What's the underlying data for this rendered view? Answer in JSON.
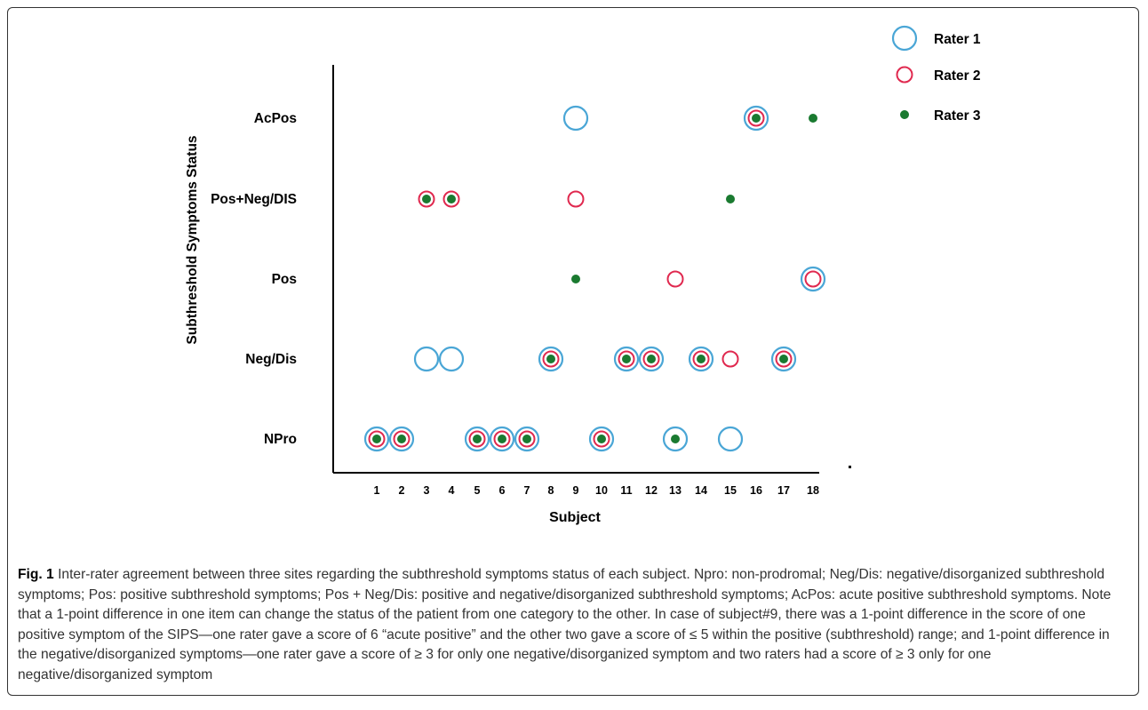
{
  "chart_data": {
    "type": "scatter",
    "xlabel": "Subject",
    "ylabel": "Subthreshold Symptoms Status",
    "x_ticks": [
      "1",
      "2",
      "3",
      "4",
      "5",
      "6",
      "7",
      "8",
      "9",
      "10",
      "11",
      "12",
      "13",
      "14",
      "15",
      "16",
      "17",
      "18"
    ],
    "y_categories": [
      "NPro",
      "Neg/Dis",
      "Pos",
      "Pos+Neg/DIS",
      "AcPos"
    ],
    "legend_position": "top-right",
    "grid": false,
    "series": [
      {
        "name": "Rater 1",
        "color": "#4aa6d6",
        "marker": "large-open-circle",
        "points": [
          {
            "x": 1,
            "y": "NPro"
          },
          {
            "x": 2,
            "y": "NPro"
          },
          {
            "x": 3,
            "y": "Neg/Dis"
          },
          {
            "x": 4,
            "y": "Neg/Dis"
          },
          {
            "x": 5,
            "y": "NPro"
          },
          {
            "x": 6,
            "y": "NPro"
          },
          {
            "x": 7,
            "y": "NPro"
          },
          {
            "x": 8,
            "y": "Neg/Dis"
          },
          {
            "x": 9,
            "y": "AcPos"
          },
          {
            "x": 10,
            "y": "NPro"
          },
          {
            "x": 11,
            "y": "Neg/Dis"
          },
          {
            "x": 12,
            "y": "Neg/Dis"
          },
          {
            "x": 13,
            "y": "NPro"
          },
          {
            "x": 14,
            "y": "Neg/Dis"
          },
          {
            "x": 15,
            "y": "NPro"
          },
          {
            "x": 16,
            "y": "AcPos"
          },
          {
            "x": 17,
            "y": "Neg/Dis"
          },
          {
            "x": 18,
            "y": "Pos"
          }
        ]
      },
      {
        "name": "Rater 2",
        "color": "#e0294f",
        "marker": "small-open-circle",
        "points": [
          {
            "x": 1,
            "y": "NPro"
          },
          {
            "x": 2,
            "y": "NPro"
          },
          {
            "x": 3,
            "y": "Pos+Neg/DIS"
          },
          {
            "x": 4,
            "y": "Pos+Neg/DIS"
          },
          {
            "x": 5,
            "y": "NPro"
          },
          {
            "x": 6,
            "y": "NPro"
          },
          {
            "x": 7,
            "y": "NPro"
          },
          {
            "x": 8,
            "y": "Neg/Dis"
          },
          {
            "x": 9,
            "y": "Pos+Neg/DIS"
          },
          {
            "x": 10,
            "y": "NPro"
          },
          {
            "x": 11,
            "y": "Neg/Dis"
          },
          {
            "x": 12,
            "y": "Neg/Dis"
          },
          {
            "x": 13,
            "y": "Pos"
          },
          {
            "x": 14,
            "y": "Neg/Dis"
          },
          {
            "x": 15,
            "y": "Neg/Dis"
          },
          {
            "x": 16,
            "y": "AcPos"
          },
          {
            "x": 17,
            "y": "Neg/Dis"
          },
          {
            "x": 18,
            "y": "Pos"
          }
        ]
      },
      {
        "name": "Rater 3",
        "color": "#1a7a30",
        "marker": "filled-dot",
        "points": [
          {
            "x": 1,
            "y": "NPro"
          },
          {
            "x": 2,
            "y": "NPro"
          },
          {
            "x": 3,
            "y": "Pos+Neg/DIS"
          },
          {
            "x": 4,
            "y": "Pos+Neg/DIS"
          },
          {
            "x": 5,
            "y": "NPro"
          },
          {
            "x": 6,
            "y": "NPro"
          },
          {
            "x": 7,
            "y": "NPro"
          },
          {
            "x": 8,
            "y": "Neg/Dis"
          },
          {
            "x": 9,
            "y": "Pos"
          },
          {
            "x": 10,
            "y": "NPro"
          },
          {
            "x": 11,
            "y": "Neg/Dis"
          },
          {
            "x": 12,
            "y": "Neg/Dis"
          },
          {
            "x": 13,
            "y": "NPro"
          },
          {
            "x": 14,
            "y": "Neg/Dis"
          },
          {
            "x": 15,
            "y": "Pos+Neg/DIS"
          },
          {
            "x": 16,
            "y": "AcPos"
          },
          {
            "x": 17,
            "y": "Neg/Dis"
          },
          {
            "x": 18,
            "y": "AcPos"
          }
        ]
      }
    ]
  },
  "caption": {
    "label": "Fig. 1",
    "text": "Inter-rater agreement between three sites regarding the subthreshold symptoms status of each subject. Npro: non-prodromal; Neg/Dis: negative/disorganized subthreshold symptoms; Pos: positive subthreshold symptoms; Pos + Neg/Dis: positive and negative/disorganized subthreshold symptoms; AcPos: acute positive subthreshold symptoms. Note that a 1-point difference in one item can change the status of the patient from one category to the other. In case of subject#9, there was a 1-point difference in the score of one positive symptom of the SIPS—one rater gave a score of 6 “acute positive” and the other two gave a score of ≤ 5 within the positive (subthreshold) range; and 1-point difference in the negative/disorganized symptoms—one rater gave a score of ≥ 3 for only one negative/disorganized symptom and two raters had a score of ≥ 3 only for one negative/disorganized symptom"
  }
}
